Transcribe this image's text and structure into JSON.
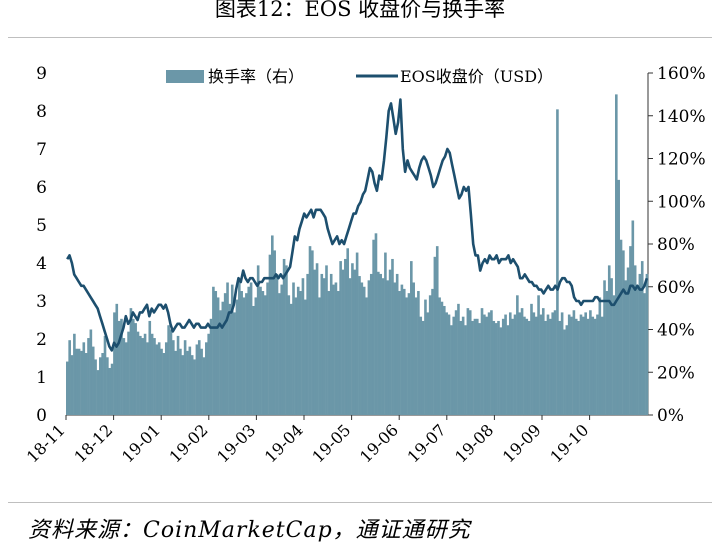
{
  "title": "图表12：EOS 收盘价与换手率",
  "source": "资料来源：CoinMarketCap，通证通研究",
  "chart_data": {
    "type": "bar+line",
    "x_tick_labels": [
      "18-11",
      "18-12",
      "19-01",
      "19-02",
      "19-03",
      "19-04",
      "19-05",
      "19-06",
      "19-07",
      "19-08",
      "19-09",
      "19-10"
    ],
    "y_left": {
      "ticks": [
        "0",
        "1",
        "2",
        "3",
        "4",
        "5",
        "6",
        "7",
        "8",
        "9"
      ],
      "min": 0,
      "max": 9
    },
    "y_right": {
      "ticks": [
        "0%",
        "20%",
        "40%",
        "60%",
        "80%",
        "100%",
        "120%",
        "140%",
        "160%"
      ],
      "min": 0,
      "max": 160
    },
    "legend": {
      "placement": "top",
      "entries": [
        "换手率（右）",
        "EOS收盘价（USD）"
      ]
    },
    "series": [
      {
        "name": "换手率（右）",
        "type": "bar",
        "axis": "right",
        "color": "#6b97a8",
        "values": [
          25,
          35,
          28,
          38,
          31,
          31,
          30,
          34,
          29,
          36,
          40,
          32,
          26,
          21,
          27,
          29,
          37,
          27,
          22,
          24,
          48,
          52,
          44,
          45,
          36,
          34,
          39,
          50,
          45,
          43,
          39,
          37,
          36,
          38,
          34,
          44,
          38,
          36,
          33,
          34,
          31,
          29,
          34,
          42,
          40,
          35,
          30,
          37,
          31,
          28,
          35,
          30,
          32,
          28,
          26,
          33,
          35,
          31,
          27,
          34,
          38,
          45,
          60,
          58,
          55,
          49,
          53,
          57,
          62,
          52,
          61,
          48,
          54,
          63,
          58,
          55,
          57,
          60,
          62,
          51,
          55,
          70,
          60,
          58,
          56,
          62,
          75,
          84,
          77,
          66,
          57,
          61,
          73,
          70,
          56,
          52,
          62,
          55,
          60,
          58,
          64,
          54,
          66,
          79,
          77,
          68,
          71,
          55,
          66,
          64,
          70,
          58,
          66,
          61,
          62,
          58,
          72,
          68,
          73,
          78,
          64,
          71,
          68,
          76,
          65,
          62,
          60,
          55,
          63,
          66,
          82,
          85,
          67,
          66,
          64,
          76,
          63,
          68,
          73,
          62,
          66,
          58,
          61,
          59,
          55,
          57,
          72,
          62,
          55,
          58,
          46,
          44,
          54,
          48,
          56,
          59,
          74,
          79,
          55,
          53,
          51,
          48,
          47,
          42,
          46,
          49,
          52,
          44,
          46,
          42,
          50,
          49,
          44,
          45,
          45,
          43,
          50,
          47,
          46,
          48,
          49,
          44,
          43,
          44,
          41,
          45,
          47,
          42,
          48,
          45,
          47,
          56,
          48,
          50,
          46,
          45,
          44,
          52,
          48,
          46,
          56,
          47,
          50,
          44,
          47,
          45,
          48,
          49,
          143,
          44,
          48,
          40,
          42,
          47,
          46,
          49,
          45,
          44,
          47,
          46,
          48,
          45,
          49,
          46,
          45,
          47,
          55,
          46,
          63,
          58,
          70,
          64,
          56,
          150,
          110,
          82,
          77,
          63,
          69,
          79,
          91,
          70,
          60,
          66,
          72,
          57,
          66
        ]
      },
      {
        "name": "EOS收盘价（USD）",
        "type": "line",
        "axis": "left",
        "color": "#1d4f6e",
        "values": [
          4.1,
          4.2,
          4.0,
          3.7,
          3.6,
          3.5,
          3.4,
          3.4,
          3.3,
          3.2,
          3.1,
          3.0,
          2.9,
          2.8,
          2.6,
          2.4,
          2.2,
          2.0,
          1.8,
          1.7,
          1.9,
          1.8,
          1.9,
          2.1,
          2.3,
          2.6,
          2.4,
          2.5,
          2.7,
          2.6,
          2.5,
          2.7,
          2.7,
          2.8,
          2.9,
          2.6,
          2.8,
          2.7,
          2.8,
          2.9,
          2.9,
          2.8,
          2.9,
          2.7,
          2.4,
          2.2,
          2.3,
          2.4,
          2.4,
          2.3,
          2.3,
          2.4,
          2.5,
          2.4,
          2.3,
          2.4,
          2.4,
          2.3,
          2.3,
          2.3,
          2.4,
          2.3,
          2.3,
          2.3,
          2.3,
          2.4,
          2.3,
          2.4,
          2.5,
          2.7,
          2.7,
          2.9,
          3.3,
          3.6,
          3.5,
          3.8,
          3.6,
          3.5,
          3.6,
          3.6,
          3.5,
          3.4,
          3.5,
          3.5,
          3.6,
          3.6,
          3.6,
          3.6,
          3.6,
          3.7,
          3.6,
          3.7,
          3.6,
          3.7,
          3.8,
          3.9,
          4.3,
          4.7,
          4.6,
          4.9,
          5.1,
          5.3,
          5.2,
          5.3,
          5.4,
          5.2,
          5.4,
          5.4,
          5.4,
          5.3,
          5.2,
          4.9,
          4.7,
          4.5,
          4.6,
          4.7,
          4.5,
          4.6,
          4.5,
          4.7,
          4.9,
          5.1,
          5.3,
          5.3,
          5.5,
          5.6,
          5.8,
          5.9,
          6.2,
          6.5,
          6.4,
          6.1,
          5.9,
          6.3,
          6.2,
          6.7,
          7.3,
          8.0,
          8.2,
          7.8,
          7.4,
          7.7,
          8.3,
          7.0,
          6.4,
          6.7,
          6.5,
          6.4,
          6.3,
          6.2,
          6.5,
          6.7,
          6.8,
          6.7,
          6.5,
          6.3,
          6.0,
          6.1,
          6.3,
          6.5,
          6.7,
          6.8,
          7.0,
          6.9,
          6.6,
          6.3,
          6.0,
          5.7,
          5.8,
          6.0,
          5.9,
          6.0,
          5.3,
          4.5,
          4.2,
          4.2,
          3.8,
          4.0,
          4.1,
          4.0,
          4.2,
          4.1,
          4.1,
          4.2,
          4.0,
          4.1,
          4.1,
          4.1,
          4.2,
          4.0,
          4.1,
          4.0,
          3.9,
          3.6,
          3.6,
          3.7,
          3.6,
          3.5,
          3.5,
          3.4,
          3.4,
          3.3,
          3.3,
          3.2,
          3.3,
          3.4,
          3.3,
          3.3,
          3.4,
          3.3,
          3.5,
          3.6,
          3.6,
          3.5,
          3.5,
          3.4,
          3.1,
          3.0,
          3.0,
          2.9,
          3.0,
          3.0,
          3.0,
          3.0,
          3.0,
          3.1,
          3.1,
          3.0,
          3.0,
          3.0,
          3.0,
          3.0,
          2.9,
          2.9,
          3.0,
          3.1,
          3.2,
          3.3,
          3.2,
          3.2,
          3.4,
          3.4,
          3.3,
          3.4,
          3.3,
          3.3,
          3.4,
          3.6
        ]
      }
    ]
  }
}
